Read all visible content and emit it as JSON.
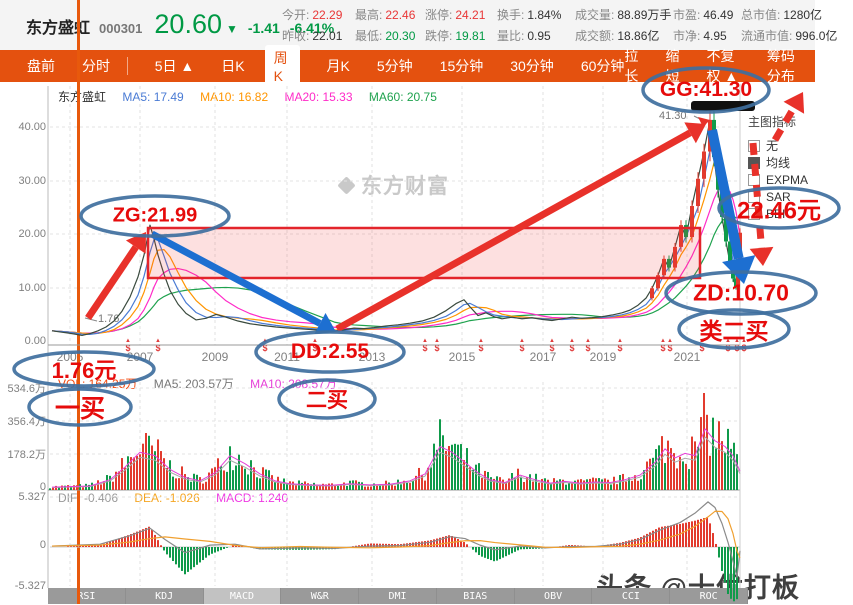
{
  "colors": {
    "up_red": "#e93636",
    "down_green": "#009944",
    "accent_orange": "#e4510f",
    "annotation_red": "#e60b0b",
    "ellipse_blue": "#3f6f9e"
  },
  "header": {
    "stock_name": "东方盛虹",
    "stock_code": "000301",
    "price": "20.60",
    "arrow": "▼",
    "change": "-1.41",
    "change_pct": "-6.41%",
    "stats_row1": [
      {
        "label": "今开:",
        "value": "22.29",
        "color": "red"
      },
      {
        "label": "最高:",
        "value": "22.46",
        "color": "red"
      },
      {
        "label": "涨停:",
        "value": "24.21",
        "color": "red"
      },
      {
        "label": "换手:",
        "value": "1.84%",
        "color": "dark"
      },
      {
        "label": "成交量:",
        "value": "88.89万手",
        "color": "dark"
      },
      {
        "label": "市盈:",
        "value": "46.49",
        "color": "dark"
      },
      {
        "label": "总市值:",
        "value": "1280亿",
        "color": "dark"
      }
    ],
    "stats_row2": [
      {
        "label": "昨收:",
        "value": "22.01",
        "color": "dark"
      },
      {
        "label": "最低:",
        "value": "20.30",
        "color": "green"
      },
      {
        "label": "跌停:",
        "value": "19.81",
        "color": "green"
      },
      {
        "label": "量比:",
        "value": "0.95",
        "color": "dark"
      },
      {
        "label": "成交额:",
        "value": "18.86亿",
        "color": "dark"
      },
      {
        "label": "市净:",
        "value": "4.95",
        "color": "dark"
      },
      {
        "label": "流通市值:",
        "value": "996.0亿",
        "color": "dark"
      }
    ]
  },
  "toolbar": {
    "left_tabs": [
      "盘前",
      "分时"
    ],
    "period_tabs": [
      {
        "label": "5日 ▲",
        "active": false
      },
      {
        "label": "日K",
        "active": false
      },
      {
        "label": "周K",
        "active": true
      },
      {
        "label": "月K",
        "active": false
      },
      {
        "label": "5分钟",
        "active": false
      },
      {
        "label": "15分钟",
        "active": false
      },
      {
        "label": "30分钟",
        "active": false
      },
      {
        "label": "60分钟",
        "active": false
      }
    ],
    "right_tabs": [
      "拉长",
      "缩短",
      "不复权 ▲",
      "筹码分布"
    ]
  },
  "main_chart": {
    "legend": {
      "name": "东方盛虹",
      "ma5": "MA5: 17.49",
      "ma10": "MA10: 16.82",
      "ma20": "MA20: 15.33",
      "ma60": "MA60: 20.75"
    },
    "y_labels": [
      "40.00",
      "30.00",
      "20.00",
      "10.00",
      "0.00"
    ],
    "x_labels": [
      "2005",
      "2007",
      "2009",
      "2011",
      "2013",
      "2015",
      "2017",
      "2019",
      "2021"
    ],
    "peak_price_label": "41.30",
    "low_price_label": "1.76",
    "watermark": "东方财富"
  },
  "side_panel": {
    "title": "主图指标",
    "items": [
      {
        "label": "无",
        "checked": false
      },
      {
        "label": "均线",
        "checked": true
      },
      {
        "label": "EXPMA",
        "checked": false
      },
      {
        "label": "SAR",
        "checked": false
      },
      {
        "label": "BBI",
        "checked": false
      }
    ]
  },
  "volume_pane": {
    "vol": "VOL: 164.25万",
    "ma5": "MA5: 203.57万",
    "ma10": "MA10: 208.57万",
    "y_labels": [
      "534.6万",
      "356.4万",
      "178.2万",
      "0"
    ]
  },
  "macd_pane": {
    "dif": "DIF: -0.406",
    "dea": "DEA: -1.026",
    "macd": "MACD: 1.240",
    "y_labels": [
      "5.327",
      "0",
      "-5.327"
    ]
  },
  "indicator_tabs": [
    {
      "label": "RSI",
      "active": false
    },
    {
      "label": "KDJ",
      "active": false
    },
    {
      "label": "MACD",
      "active": true
    },
    {
      "label": "W&R",
      "active": false
    },
    {
      "label": "DMI",
      "active": false
    },
    {
      "label": "BIAS",
      "active": false
    },
    {
      "label": "OBV",
      "active": false
    },
    {
      "label": "CCI",
      "active": false
    },
    {
      "label": "ROC",
      "active": false
    }
  ],
  "annotations": {
    "gg": "GG:41.30",
    "zg": "ZG:21.99",
    "dd": "DD:2.55",
    "zd": "ZD:10.70",
    "high_price": "22.46元",
    "low_price": "1.76元",
    "first_buy": "一买",
    "second_buy": "二买",
    "second_buy_like": "类二买"
  },
  "bottom_watermark": "头条 @十优打板",
  "chart_data": {
    "type": "candlestick+volume+macd",
    "price_axis": [
      40,
      30,
      20,
      10,
      0
    ],
    "year_x": [
      70,
      140,
      215,
      287,
      372,
      462,
      543,
      603,
      687
    ],
    "dividend_marker_x": [
      128,
      158,
      265,
      315,
      425,
      437,
      481,
      522,
      552,
      572,
      588,
      620,
      663,
      670,
      702,
      728,
      737,
      744
    ],
    "price_points": [
      [
        52,
        2.6
      ],
      [
        60,
        2.4
      ],
      [
        68,
        2.2
      ],
      [
        75,
        2.0
      ],
      [
        82,
        1.76
      ],
      [
        90,
        2.1
      ],
      [
        98,
        2.6
      ],
      [
        106,
        3.3
      ],
      [
        114,
        4.4
      ],
      [
        122,
        6.2
      ],
      [
        130,
        8.8
      ],
      [
        138,
        12.5
      ],
      [
        144,
        16.5
      ],
      [
        150,
        21.99
      ],
      [
        154,
        19.5
      ],
      [
        158,
        16.5
      ],
      [
        164,
        13.0
      ],
      [
        170,
        10.0
      ],
      [
        178,
        7.5
      ],
      [
        186,
        5.8
      ],
      [
        196,
        4.6
      ],
      [
        206,
        4.9
      ],
      [
        216,
        5.6
      ],
      [
        226,
        5.1
      ],
      [
        238,
        4.4
      ],
      [
        250,
        3.9
      ],
      [
        262,
        3.6
      ],
      [
        276,
        3.3
      ],
      [
        290,
        3.1
      ],
      [
        305,
        2.9
      ],
      [
        318,
        2.75
      ],
      [
        328,
        2.6
      ],
      [
        335,
        2.55
      ],
      [
        344,
        2.8
      ],
      [
        354,
        3.1
      ],
      [
        364,
        3.0
      ],
      [
        374,
        3.2
      ],
      [
        386,
        3.5
      ],
      [
        398,
        3.7
      ],
      [
        410,
        4.0
      ],
      [
        422,
        4.4
      ],
      [
        434,
        5.1
      ],
      [
        446,
        6.3
      ],
      [
        456,
        7.6
      ],
      [
        464,
        8.3
      ],
      [
        470,
        7.0
      ],
      [
        478,
        5.4
      ],
      [
        486,
        5.9
      ],
      [
        494,
        5.2
      ],
      [
        502,
        4.8
      ],
      [
        512,
        5.1
      ],
      [
        522,
        4.8
      ],
      [
        532,
        5.0
      ],
      [
        542,
        4.7
      ],
      [
        552,
        4.5
      ],
      [
        562,
        4.8
      ],
      [
        572,
        5.1
      ],
      [
        582,
        4.9
      ],
      [
        592,
        5.0
      ],
      [
        602,
        5.2
      ],
      [
        612,
        5.5
      ],
      [
        622,
        5.9
      ],
      [
        630,
        6.4
      ],
      [
        638,
        7.3
      ],
      [
        646,
        8.6
      ],
      [
        652,
        10.4
      ],
      [
        658,
        12.8
      ],
      [
        664,
        15.8
      ],
      [
        669,
        14.2
      ],
      [
        675,
        18.0
      ],
      [
        681,
        22.0
      ],
      [
        686,
        19.8
      ],
      [
        692,
        25.5
      ],
      [
        698,
        30.5
      ],
      [
        704,
        35.5
      ],
      [
        710,
        41.3
      ],
      [
        714,
        34.5
      ],
      [
        718,
        28.5
      ],
      [
        722,
        23.5
      ],
      [
        726,
        19.0
      ],
      [
        730,
        15.0
      ],
      [
        733,
        12.2
      ],
      [
        736,
        10.7
      ],
      [
        738,
        15.5
      ],
      [
        740,
        20.6
      ]
    ],
    "volume_envelope": [
      [
        52,
        25
      ],
      [
        90,
        35
      ],
      [
        110,
        90
      ],
      [
        125,
        200
      ],
      [
        140,
        330
      ],
      [
        155,
        300
      ],
      [
        170,
        180
      ],
      [
        185,
        110
      ],
      [
        200,
        80
      ],
      [
        215,
        150
      ],
      [
        230,
        300
      ],
      [
        245,
        230
      ],
      [
        260,
        140
      ],
      [
        275,
        80
      ],
      [
        290,
        55
      ],
      [
        310,
        45
      ],
      [
        330,
        40
      ],
      [
        350,
        55
      ],
      [
        370,
        45
      ],
      [
        390,
        50
      ],
      [
        410,
        80
      ],
      [
        425,
        140
      ],
      [
        440,
        380
      ],
      [
        452,
        330
      ],
      [
        465,
        240
      ],
      [
        478,
        150
      ],
      [
        490,
        90
      ],
      [
        505,
        65
      ],
      [
        520,
        130
      ],
      [
        535,
        90
      ],
      [
        550,
        60
      ],
      [
        565,
        75
      ],
      [
        580,
        60
      ],
      [
        595,
        70
      ],
      [
        610,
        65
      ],
      [
        625,
        90
      ],
      [
        640,
        130
      ],
      [
        655,
        240
      ],
      [
        665,
        360
      ],
      [
        675,
        280
      ],
      [
        685,
        320
      ],
      [
        695,
        300
      ],
      [
        705,
        534
      ],
      [
        715,
        430
      ],
      [
        725,
        380
      ],
      [
        733,
        300
      ],
      [
        740,
        164
      ]
    ],
    "dif_points": [
      [
        52,
        0.1
      ],
      [
        100,
        0.3
      ],
      [
        130,
        1.2
      ],
      [
        150,
        2.0
      ],
      [
        165,
        0.8
      ],
      [
        185,
        -0.6
      ],
      [
        210,
        0.2
      ],
      [
        235,
        0.3
      ],
      [
        260,
        -0.2
      ],
      [
        300,
        -0.1
      ],
      [
        335,
        -0.15
      ],
      [
        370,
        0.1
      ],
      [
        400,
        0.15
      ],
      [
        430,
        0.5
      ],
      [
        450,
        1.1
      ],
      [
        465,
        0.9
      ],
      [
        480,
        0.2
      ],
      [
        495,
        -0.3
      ],
      [
        520,
        0.1
      ],
      [
        545,
        -0.1
      ],
      [
        570,
        0.05
      ],
      [
        595,
        0.05
      ],
      [
        620,
        0.3
      ],
      [
        640,
        0.8
      ],
      [
        660,
        1.8
      ],
      [
        680,
        2.6
      ],
      [
        695,
        3.6
      ],
      [
        708,
        4.8
      ],
      [
        715,
        4.2
      ],
      [
        722,
        2.5
      ],
      [
        728,
        0.5
      ],
      [
        733,
        -1.5
      ],
      [
        737,
        -3.2
      ],
      [
        740,
        -0.4
      ]
    ]
  }
}
